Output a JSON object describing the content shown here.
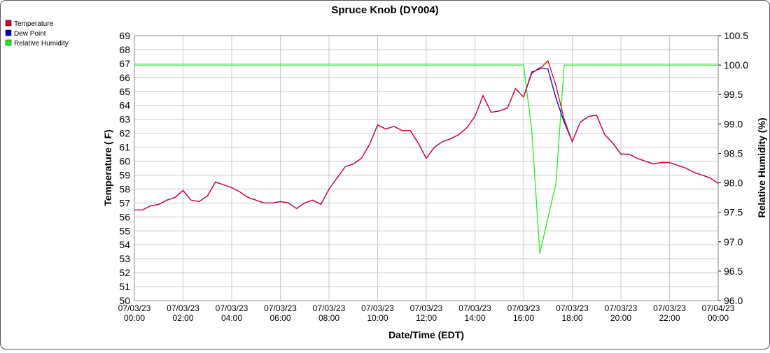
{
  "chart_data": {
    "type": "line",
    "title": "Spruce Knob (DY004)",
    "x_label": "Date/Time (EDT)",
    "y_label": "Temperature ( F)",
    "y2_label": "Relative Humidity (%)",
    "xlim": [
      "07/03/23 00:00",
      "07/04/23 00:00"
    ],
    "xticks": [
      "07/03/23 00:00",
      "07/03/23 02:00",
      "07/03/23 04:00",
      "07/03/23 06:00",
      "07/03/23 08:00",
      "07/03/23 10:00",
      "07/03/23 12:00",
      "07/03/23 14:00",
      "07/03/23 16:00",
      "07/03/23 18:00",
      "07/03/23 20:00",
      "07/03/23 22:00",
      "07/04/23 00:00"
    ],
    "ylim": [
      50,
      69
    ],
    "yticks": [
      50,
      51,
      52,
      53,
      54,
      55,
      56,
      57,
      58,
      59,
      60,
      61,
      62,
      63,
      64,
      65,
      66,
      67,
      68,
      69
    ],
    "y2lim": [
      96,
      100.5
    ],
    "y2ticks": [
      {
        "value": 96,
        "label": "96.0"
      },
      96.5,
      {
        "value": 97,
        "label": "97.0"
      },
      97.5,
      {
        "value": 98,
        "label": "98.0"
      },
      98.5,
      {
        "value": 99,
        "label": "99.0"
      },
      99.5,
      {
        "value": 100,
        "label": "100.0"
      },
      100.5
    ],
    "grid": true,
    "legend": "top-left",
    "x": [
      "07/03/23 00:00",
      "07/03/23 00:20",
      "07/03/23 00:40",
      "07/03/23 01:00",
      "07/03/23 01:20",
      "07/03/23 01:40",
      "07/03/23 02:00",
      "07/03/23 02:20",
      "07/03/23 02:40",
      "07/03/23 03:00",
      "07/03/23 03:20",
      "07/03/23 03:40",
      "07/03/23 04:00",
      "07/03/23 04:20",
      "07/03/23 04:40",
      "07/03/23 05:00",
      "07/03/23 05:20",
      "07/03/23 05:40",
      "07/03/23 06:00",
      "07/03/23 06:20",
      "07/03/23 06:40",
      "07/03/23 07:00",
      "07/03/23 07:20",
      "07/03/23 07:40",
      "07/03/23 08:00",
      "07/03/23 08:20",
      "07/03/23 08:40",
      "07/03/23 09:00",
      "07/03/23 09:20",
      "07/03/23 09:40",
      "07/03/23 10:00",
      "07/03/23 10:20",
      "07/03/23 10:40",
      "07/03/23 11:00",
      "07/03/23 11:20",
      "07/03/23 11:40",
      "07/03/23 12:00",
      "07/03/23 12:20",
      "07/03/23 12:40",
      "07/03/23 13:00",
      "07/03/23 13:20",
      "07/03/23 13:40",
      "07/03/23 14:00",
      "07/03/23 14:20",
      "07/03/23 14:40",
      "07/03/23 15:00",
      "07/03/23 15:20",
      "07/03/23 15:40",
      "07/03/23 16:00",
      "07/03/23 16:20",
      "07/03/23 16:40",
      "07/03/23 17:00",
      "07/03/23 17:20",
      "07/03/23 17:40",
      "07/03/23 18:00",
      "07/03/23 18:20",
      "07/03/23 18:40",
      "07/03/23 19:00",
      "07/03/23 19:20",
      "07/03/23 19:40",
      "07/03/23 20:00",
      "07/03/23 20:20",
      "07/03/23 20:40",
      "07/03/23 21:00",
      "07/03/23 21:20",
      "07/03/23 21:40",
      "07/03/23 22:00",
      "07/03/23 22:20",
      "07/03/23 22:40",
      "07/03/23 23:00",
      "07/03/23 23:20",
      "07/03/23 23:40",
      "07/04/23 00:00"
    ],
    "series": [
      {
        "name": "Temperature",
        "color": "#dd0022",
        "axis": "y",
        "values": [
          56.5,
          56.5,
          56.8,
          56.9,
          57.2,
          57.4,
          57.9,
          57.2,
          57.1,
          57.5,
          58.5,
          58.3,
          58.1,
          57.8,
          57.4,
          57.2,
          57.0,
          57.0,
          57.1,
          57.0,
          56.6,
          57.0,
          57.2,
          56.9,
          58.0,
          58.8,
          59.6,
          59.8,
          60.2,
          61.2,
          62.6,
          62.3,
          62.5,
          62.2,
          62.2,
          61.3,
          60.2,
          61.0,
          61.4,
          61.6,
          61.9,
          62.4,
          63.2,
          64.7,
          63.5,
          63.6,
          63.8,
          65.2,
          64.6,
          66.4,
          66.6,
          67.2,
          65.4,
          63.0,
          61.4,
          62.8,
          63.2,
          63.3,
          61.9,
          61.3,
          60.5,
          60.5,
          60.2,
          60.0,
          59.8,
          59.9,
          59.9,
          59.7,
          59.5,
          59.2,
          59.0,
          58.8,
          58.4
        ]
      },
      {
        "name": "Dew Point",
        "color": "#0000cc",
        "axis": "y",
        "values": [
          56.5,
          56.5,
          56.8,
          56.9,
          57.2,
          57.4,
          57.9,
          57.2,
          57.1,
          57.5,
          58.5,
          58.3,
          58.1,
          57.8,
          57.4,
          57.2,
          57.0,
          57.0,
          57.1,
          57.0,
          56.6,
          57.0,
          57.2,
          56.9,
          58.0,
          58.8,
          59.6,
          59.8,
          60.2,
          61.2,
          62.6,
          62.3,
          62.5,
          62.2,
          62.2,
          61.3,
          60.2,
          61.0,
          61.4,
          61.6,
          61.9,
          62.4,
          63.2,
          64.7,
          63.5,
          63.6,
          63.8,
          65.2,
          64.6,
          66.3,
          66.7,
          66.6,
          64.5,
          62.8,
          61.4,
          62.8,
          63.2,
          63.3,
          61.9,
          61.3,
          60.5,
          60.5,
          60.2,
          60.0,
          59.8,
          59.9,
          59.9,
          59.7,
          59.5,
          59.2,
          59.0,
          58.8,
          58.4
        ]
      },
      {
        "name": "Relative Humidity",
        "color": "#22ee22",
        "axis": "y2",
        "values": [
          100,
          100,
          100,
          100,
          100,
          100,
          100,
          100,
          100,
          100,
          100,
          100,
          100,
          100,
          100,
          100,
          100,
          100,
          100,
          100,
          100,
          100,
          100,
          100,
          100,
          100,
          100,
          100,
          100,
          100,
          100,
          100,
          100,
          100,
          100,
          100,
          100,
          100,
          100,
          100,
          100,
          100,
          100,
          100,
          100,
          100,
          100,
          100,
          100,
          98.9,
          96.8,
          97.4,
          98.0,
          100,
          100,
          100,
          100,
          100,
          100,
          100,
          100,
          100,
          100,
          100,
          100,
          100,
          100,
          100,
          100,
          100,
          100,
          100,
          100
        ]
      }
    ]
  }
}
